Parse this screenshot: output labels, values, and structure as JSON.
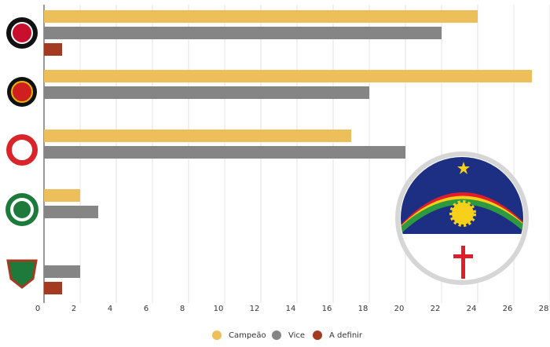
{
  "chart_data": {
    "type": "hbar",
    "categories": [
      null,
      null,
      null,
      null,
      null
    ],
    "series": [
      {
        "name": "Campeão",
        "color": "#ecbf5a",
        "values": [
          24,
          27,
          17,
          2,
          0
        ]
      },
      {
        "name": "Vice",
        "color": "#858585",
        "values": [
          22,
          18,
          20,
          3,
          2
        ]
      },
      {
        "name": "A definir",
        "color": "#a33a22",
        "values": [
          1,
          0,
          0,
          0,
          1
        ]
      }
    ],
    "xlim": [
      0,
      28
    ],
    "xticks": [
      0,
      2,
      4,
      6,
      8,
      10,
      12,
      14,
      16,
      18,
      20,
      22,
      24,
      26,
      28
    ],
    "grid": true,
    "legend": "bottom"
  }
}
